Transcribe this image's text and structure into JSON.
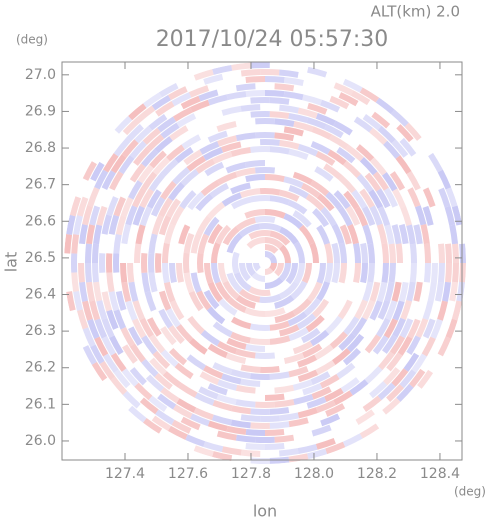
{
  "chart_data": {
    "type": "ppi",
    "title": "2017/10/24 05:57:30",
    "annotation": "ALT(km)  2.0",
    "x_label": "lon",
    "y_label": "lat",
    "x_unit": "(deg)",
    "y_unit": "(deg)",
    "xlim": [
      127.2,
      128.47
    ],
    "ylim": [
      25.948,
      27.035
    ],
    "xticks": [
      {
        "value": 127.4,
        "label": "127.4"
      },
      {
        "value": 127.6,
        "label": "127.6"
      },
      {
        "value": 127.8,
        "label": "127.8"
      },
      {
        "value": 128.0,
        "label": "128.0"
      },
      {
        "value": 128.2,
        "label": "128.2"
      },
      {
        "value": 128.4,
        "label": "128.4"
      }
    ],
    "yticks": [
      {
        "value": 26.0,
        "label": "26.0"
      },
      {
        "value": 26.1,
        "label": "26.1"
      },
      {
        "value": 26.2,
        "label": "26.2"
      },
      {
        "value": 26.3,
        "label": "26.3"
      },
      {
        "value": 26.4,
        "label": "26.4"
      },
      {
        "value": 26.5,
        "label": "26.5"
      },
      {
        "value": 26.6,
        "label": "26.6"
      },
      {
        "value": 26.7,
        "label": "26.7"
      },
      {
        "value": 26.8,
        "label": "26.8"
      },
      {
        "value": 26.9,
        "label": "26.9"
      },
      {
        "value": 27.0,
        "label": "27.0"
      }
    ]
  }
}
